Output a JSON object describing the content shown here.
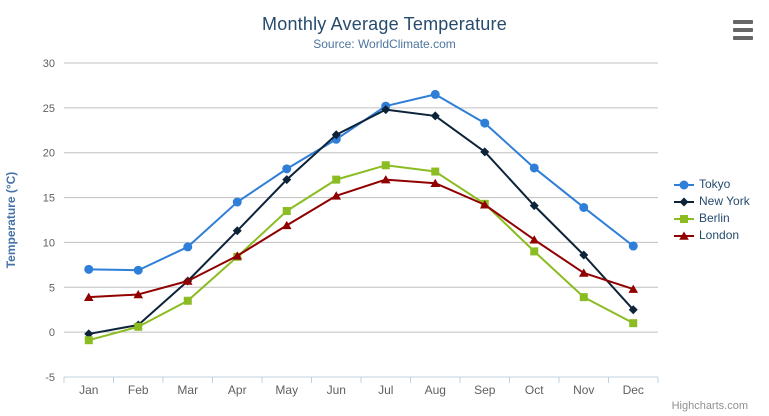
{
  "credit": "Highcharts.com",
  "export_menu": {
    "icon": "hamburger-menu-icon"
  },
  "colors": {
    "title": "#274b6d",
    "subtitle": "#4d759e",
    "axis_title": "#4572a7",
    "axis_label": "#606060",
    "grid_line": "#c0c0c0",
    "axis_line": "#c0d0e0",
    "legend_text": "#274b6d",
    "credit_text": "#909090",
    "menu_icon": "#666666"
  },
  "chart_data": {
    "type": "line",
    "title": "Monthly Average Temperature",
    "subtitle": "Source: WorldClimate.com",
    "xlabel": "",
    "ylabel": "Temperature (°C)",
    "ylim": [
      -5,
      30
    ],
    "yticks": [
      -5,
      0,
      5,
      10,
      15,
      20,
      25,
      30
    ],
    "grid": true,
    "legend_position": "right",
    "categories": [
      "Jan",
      "Feb",
      "Mar",
      "Apr",
      "May",
      "Jun",
      "Jul",
      "Aug",
      "Sep",
      "Oct",
      "Nov",
      "Dec"
    ],
    "series": [
      {
        "name": "Tokyo",
        "color": "#2f7ed8",
        "marker": "circle",
        "values": [
          7.0,
          6.9,
          9.5,
          14.5,
          18.2,
          21.5,
          25.2,
          26.5,
          23.3,
          18.3,
          13.9,
          9.6
        ]
      },
      {
        "name": "New York",
        "color": "#0d233a",
        "marker": "diamond",
        "values": [
          -0.2,
          0.8,
          5.7,
          11.3,
          17.0,
          22.0,
          24.8,
          24.1,
          20.1,
          14.1,
          8.6,
          2.5
        ]
      },
      {
        "name": "Berlin",
        "color": "#8bbc21",
        "marker": "square",
        "values": [
          -0.9,
          0.6,
          3.5,
          8.4,
          13.5,
          17.0,
          18.6,
          17.9,
          14.3,
          9.0,
          3.9,
          1.0
        ]
      },
      {
        "name": "London",
        "color": "#910000",
        "marker": "triangle",
        "values": [
          3.9,
          4.2,
          5.7,
          8.5,
          11.9,
          15.2,
          17.0,
          16.6,
          14.2,
          10.3,
          6.6,
          4.8
        ]
      }
    ]
  }
}
